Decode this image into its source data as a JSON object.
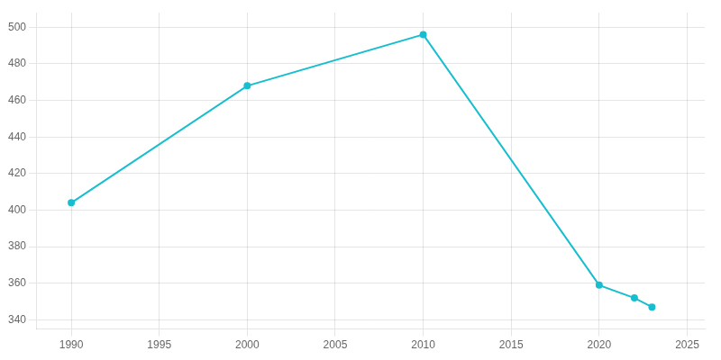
{
  "chart_data": {
    "type": "line",
    "x": [
      1990,
      2000,
      2010,
      2020,
      2022,
      2023
    ],
    "values": [
      404,
      468,
      496,
      359,
      352,
      347
    ],
    "color": "#17BECF",
    "marker": "circle",
    "xlim": [
      1988,
      2026
    ],
    "xticks": [
      1990,
      1995,
      2000,
      2005,
      2010,
      2015,
      2020,
      2025
    ],
    "ylim": [
      335,
      508
    ],
    "yticks": [
      340,
      360,
      380,
      400,
      420,
      440,
      460,
      480,
      500
    ],
    "grid": true
  }
}
